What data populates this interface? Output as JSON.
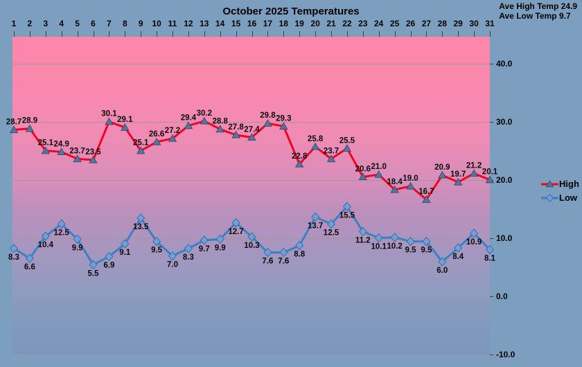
{
  "header": {
    "title": "October 2025 Temperatures",
    "ave_high": "Ave High Temp 24.9",
    "ave_low": "Ave Low Temp 9.7"
  },
  "chart_data": {
    "type": "line",
    "title": "October 2025 Temperatures",
    "x_axis_position": "top",
    "y_axis_position": "right",
    "legend_position": "right",
    "grid": true,
    "categories": [
      "1",
      "2",
      "3",
      "4",
      "5",
      "6",
      "7",
      "8",
      "9",
      "10",
      "11",
      "12",
      "13",
      "14",
      "15",
      "16",
      "17",
      "18",
      "19",
      "20",
      "21",
      "22",
      "23",
      "24",
      "25",
      "26",
      "27",
      "28",
      "29",
      "30",
      "31"
    ],
    "series": [
      {
        "name": "High",
        "line_color": "#f40021",
        "marker": "triangle",
        "marker_fill": "#5c7596",
        "marker_stroke": "#33517a",
        "label_position": "above",
        "values": [
          28.7,
          28.9,
          25.1,
          24.9,
          23.7,
          23.5,
          30.1,
          29.1,
          25.1,
          26.6,
          27.2,
          29.4,
          30.2,
          28.8,
          27.8,
          27.4,
          29.8,
          29.3,
          22.8,
          25.8,
          23.7,
          25.5,
          20.6,
          21.0,
          18.4,
          19.0,
          16.7,
          20.9,
          19.7,
          21.2,
          20.1
        ]
      },
      {
        "name": "Low",
        "line_color": "#3b7fc4",
        "marker": "diamond",
        "marker_fill": "#6fa0d8",
        "marker_stroke": "#3b6ca8",
        "label_position": "below",
        "values": [
          8.3,
          6.6,
          10.4,
          12.5,
          9.9,
          5.5,
          6.9,
          9.1,
          13.5,
          9.5,
          7.0,
          8.3,
          9.7,
          9.9,
          12.7,
          10.3,
          7.6,
          7.6,
          8.8,
          13.7,
          12.5,
          15.5,
          11.2,
          10.1,
          10.2,
          9.5,
          9.5,
          6.0,
          8.4,
          10.9,
          8.1
        ]
      }
    ],
    "y_axis": {
      "min": -10,
      "max": 45,
      "ticks": [
        {
          "label": "40.0",
          "value": 40
        },
        {
          "label": "30.0",
          "value": 30
        },
        {
          "label": "20.0",
          "value": 20
        },
        {
          "label": "10.0",
          "value": 10
        },
        {
          "label": "0.0",
          "value": 0
        },
        {
          "label": "-10.0",
          "value": -10
        }
      ]
    },
    "annotations": [
      "Ave High Temp 24.9",
      "Ave Low Temp 9.7"
    ],
    "averages": {
      "high": 24.9,
      "low": 9.7
    }
  },
  "colors": {
    "background": "#7c9fc0",
    "plot_gradient_top": "#fe86ab",
    "plot_gradient_bottom": "#7e96bd",
    "gridline": "#9b9b9b",
    "tick": "#3c3c3c",
    "label_text": "#0a0a0a"
  }
}
